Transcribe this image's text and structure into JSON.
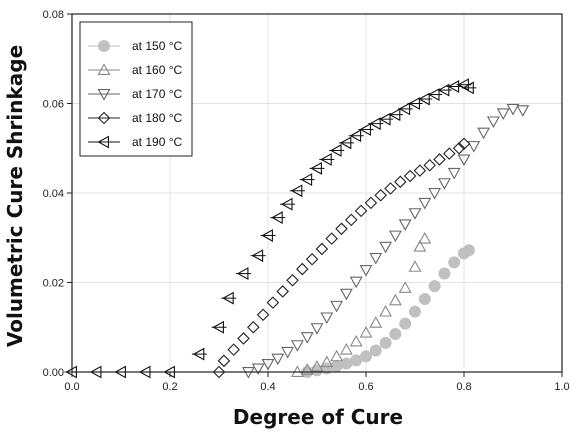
{
  "chart_data": {
    "type": "scatter",
    "xlabel": "Degree of Cure",
    "ylabel": "Volumetric Cure Shrinkage",
    "xlim": [
      0.0,
      1.0
    ],
    "ylim": [
      0.0,
      0.08
    ],
    "xticks": [
      "0.0",
      "0.2",
      "0.4",
      "0.6",
      "0.8",
      "1.0"
    ],
    "yticks": [
      "0.00",
      "0.02",
      "0.04",
      "0.06",
      "0.08"
    ],
    "grid": true,
    "legend_position": "top-left",
    "series": [
      {
        "name": "at 150 °C",
        "marker": "circle-filled",
        "color": "#c0c0c0",
        "points": [
          [
            0.48,
            0.0
          ],
          [
            0.5,
            0.0004
          ],
          [
            0.52,
            0.0008
          ],
          [
            0.54,
            0.0013
          ],
          [
            0.56,
            0.0019
          ],
          [
            0.58,
            0.0026
          ],
          [
            0.6,
            0.0035
          ],
          [
            0.62,
            0.0048
          ],
          [
            0.64,
            0.0065
          ],
          [
            0.66,
            0.0085
          ],
          [
            0.68,
            0.0108
          ],
          [
            0.7,
            0.0135
          ],
          [
            0.72,
            0.0163
          ],
          [
            0.74,
            0.0192
          ],
          [
            0.76,
            0.022
          ],
          [
            0.78,
            0.0245
          ],
          [
            0.8,
            0.0265
          ],
          [
            0.81,
            0.0272
          ]
        ]
      },
      {
        "name": "at 160 °C",
        "marker": "triangle-up",
        "color": "#888888",
        "points": [
          [
            0.46,
            0.0
          ],
          [
            0.48,
            0.0005
          ],
          [
            0.5,
            0.0012
          ],
          [
            0.52,
            0.0022
          ],
          [
            0.54,
            0.0035
          ],
          [
            0.56,
            0.005
          ],
          [
            0.58,
            0.0068
          ],
          [
            0.6,
            0.0088
          ],
          [
            0.62,
            0.011
          ],
          [
            0.64,
            0.0135
          ],
          [
            0.66,
            0.016
          ],
          [
            0.68,
            0.0188
          ],
          [
            0.7,
            0.0235
          ],
          [
            0.71,
            0.028
          ],
          [
            0.72,
            0.0298
          ]
        ]
      },
      {
        "name": "at 170 °C",
        "marker": "triangle-down",
        "color": "#666666",
        "points": [
          [
            0.36,
            0.0
          ],
          [
            0.38,
            0.0008
          ],
          [
            0.4,
            0.0018
          ],
          [
            0.42,
            0.003
          ],
          [
            0.44,
            0.0045
          ],
          [
            0.46,
            0.006
          ],
          [
            0.48,
            0.0078
          ],
          [
            0.5,
            0.0098
          ],
          [
            0.52,
            0.0122
          ],
          [
            0.54,
            0.0148
          ],
          [
            0.56,
            0.0175
          ],
          [
            0.58,
            0.0202
          ],
          [
            0.6,
            0.0228
          ],
          [
            0.62,
            0.0255
          ],
          [
            0.64,
            0.028
          ],
          [
            0.66,
            0.0305
          ],
          [
            0.68,
            0.033
          ],
          [
            0.7,
            0.0355
          ],
          [
            0.72,
            0.0378
          ],
          [
            0.74,
            0.04
          ],
          [
            0.76,
            0.0422
          ],
          [
            0.78,
            0.0445
          ],
          [
            0.8,
            0.0475
          ],
          [
            0.82,
            0.0505
          ],
          [
            0.84,
            0.0535
          ],
          [
            0.86,
            0.056
          ],
          [
            0.88,
            0.0578
          ],
          [
            0.9,
            0.0588
          ],
          [
            0.92,
            0.0585
          ]
        ]
      },
      {
        "name": "at 180 °C",
        "marker": "diamond",
        "color": "#222222",
        "points": [
          [
            0.3,
            0.0
          ],
          [
            0.31,
            0.0025
          ],
          [
            0.33,
            0.005
          ],
          [
            0.35,
            0.0075
          ],
          [
            0.37,
            0.01
          ],
          [
            0.39,
            0.0128
          ],
          [
            0.41,
            0.0155
          ],
          [
            0.43,
            0.018
          ],
          [
            0.45,
            0.0205
          ],
          [
            0.47,
            0.023
          ],
          [
            0.49,
            0.0252
          ],
          [
            0.51,
            0.0275
          ],
          [
            0.53,
            0.0298
          ],
          [
            0.55,
            0.032
          ],
          [
            0.57,
            0.034
          ],
          [
            0.59,
            0.036
          ],
          [
            0.61,
            0.0378
          ],
          [
            0.63,
            0.0395
          ],
          [
            0.65,
            0.041
          ],
          [
            0.67,
            0.0425
          ],
          [
            0.69,
            0.0438
          ],
          [
            0.71,
            0.045
          ],
          [
            0.73,
            0.0462
          ],
          [
            0.75,
            0.0475
          ],
          [
            0.77,
            0.0488
          ],
          [
            0.79,
            0.05
          ],
          [
            0.8,
            0.051
          ]
        ]
      },
      {
        "name": "at 190 °C",
        "marker": "triangle-left",
        "color": "#111111",
        "points": [
          [
            0.0,
            0.0
          ],
          [
            0.05,
            0.0
          ],
          [
            0.1,
            0.0
          ],
          [
            0.15,
            0.0
          ],
          [
            0.2,
            0.0
          ],
          [
            0.26,
            0.004
          ],
          [
            0.3,
            0.01
          ],
          [
            0.32,
            0.0165
          ],
          [
            0.35,
            0.022
          ],
          [
            0.38,
            0.026
          ],
          [
            0.4,
            0.0305
          ],
          [
            0.42,
            0.0345
          ],
          [
            0.44,
            0.0375
          ],
          [
            0.46,
            0.0405
          ],
          [
            0.48,
            0.043
          ],
          [
            0.5,
            0.0455
          ],
          [
            0.52,
            0.0475
          ],
          [
            0.54,
            0.0495
          ],
          [
            0.56,
            0.0512
          ],
          [
            0.58,
            0.0528
          ],
          [
            0.6,
            0.0542
          ],
          [
            0.62,
            0.0555
          ],
          [
            0.64,
            0.0565
          ],
          [
            0.66,
            0.0575
          ],
          [
            0.68,
            0.0588
          ],
          [
            0.7,
            0.06
          ],
          [
            0.72,
            0.061
          ],
          [
            0.74,
            0.062
          ],
          [
            0.76,
            0.063
          ],
          [
            0.78,
            0.0638
          ],
          [
            0.8,
            0.0642
          ],
          [
            0.81,
            0.0635
          ]
        ]
      }
    ]
  }
}
